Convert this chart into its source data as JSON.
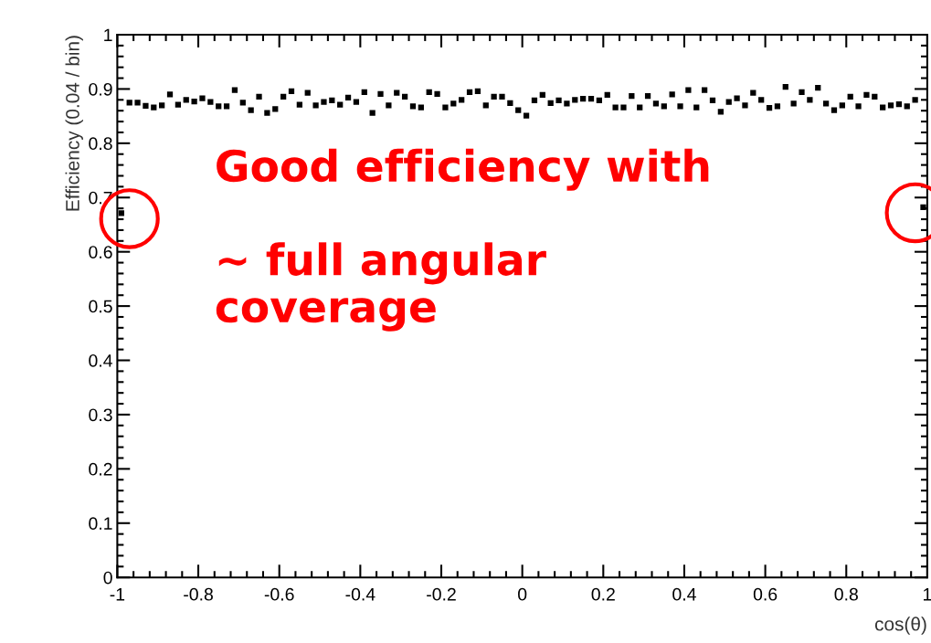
{
  "chart_data": {
    "type": "scatter",
    "xlabel": "cos(θ)",
    "ylabel": "Efficiency (0.04 / bin)",
    "xlim": [
      -1,
      1
    ],
    "xticks": [
      -1,
      -0.8,
      -0.6,
      -0.4,
      -0.2,
      0,
      0.2,
      0.4,
      0.6,
      0.8,
      1
    ],
    "ylim": [
      0,
      1
    ],
    "yticks": [
      0,
      0.1,
      0.2,
      0.3,
      0.4,
      0.5,
      0.6,
      0.7,
      0.8,
      0.9,
      1
    ],
    "grid": false,
    "marker": "square",
    "legend": false,
    "annotations": [
      "Good efficiency with\n\n~ full angular\ncoverage"
    ],
    "series": [
      {
        "color": "#000000",
        "x": [
          -0.99,
          -0.97,
          -0.95,
          -0.93,
          -0.91,
          -0.89,
          -0.87,
          -0.85,
          -0.83,
          -0.81,
          -0.79,
          -0.77,
          -0.75,
          -0.73,
          -0.71,
          -0.69,
          -0.67,
          -0.65,
          -0.63,
          -0.61,
          -0.59,
          -0.57,
          -0.55,
          -0.53,
          -0.51,
          -0.49,
          -0.47,
          -0.45,
          -0.43,
          -0.41,
          -0.39,
          -0.37,
          -0.35,
          -0.33,
          -0.31,
          -0.29,
          -0.27,
          -0.25,
          -0.23,
          -0.21,
          -0.19,
          -0.17,
          -0.15,
          -0.13,
          -0.11,
          -0.09,
          -0.07,
          -0.05,
          -0.03,
          -0.01,
          0.01,
          0.03,
          0.05,
          0.07,
          0.09,
          0.11,
          0.13,
          0.15,
          0.17,
          0.19,
          0.21,
          0.23,
          0.25,
          0.27,
          0.29,
          0.31,
          0.33,
          0.35,
          0.37,
          0.39,
          0.41,
          0.43,
          0.45,
          0.47,
          0.49,
          0.51,
          0.53,
          0.55,
          0.57,
          0.59,
          0.61,
          0.63,
          0.65,
          0.67,
          0.69,
          0.71,
          0.73,
          0.75,
          0.77,
          0.79,
          0.81,
          0.83,
          0.85,
          0.87,
          0.89,
          0.91,
          0.93,
          0.95,
          0.97,
          0.99
        ],
        "values": [
          0.671,
          0.875,
          0.875,
          0.869,
          0.866,
          0.87,
          0.89,
          0.871,
          0.88,
          0.877,
          0.883,
          0.876,
          0.868,
          0.868,
          0.898,
          0.875,
          0.861,
          0.886,
          0.856,
          0.863,
          0.886,
          0.896,
          0.871,
          0.893,
          0.87,
          0.876,
          0.879,
          0.871,
          0.884,
          0.876,
          0.894,
          0.856,
          0.891,
          0.87,
          0.893,
          0.886,
          0.868,
          0.866,
          0.894,
          0.891,
          0.866,
          0.873,
          0.88,
          0.894,
          0.896,
          0.87,
          0.886,
          0.886,
          0.874,
          0.861,
          0.851,
          0.879,
          0.889,
          0.874,
          0.879,
          0.873,
          0.88,
          0.882,
          0.882,
          0.879,
          0.889,
          0.866,
          0.866,
          0.887,
          0.866,
          0.887,
          0.873,
          0.868,
          0.89,
          0.868,
          0.898,
          0.866,
          0.898,
          0.879,
          0.858,
          0.876,
          0.883,
          0.87,
          0.893,
          0.88,
          0.865,
          0.868,
          0.904,
          0.873,
          0.894,
          0.88,
          0.902,
          0.873,
          0.861,
          0.87,
          0.886,
          0.868,
          0.889,
          0.886,
          0.866,
          0.87,
          0.872,
          0.868,
          0.88,
          0.682
        ]
      }
    ]
  }
}
